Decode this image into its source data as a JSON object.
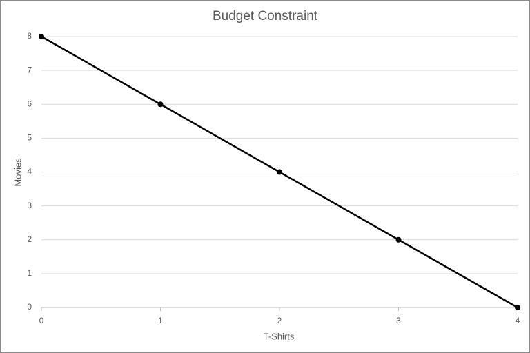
{
  "chart_data": {
    "type": "line",
    "title": "Budget Constraint",
    "x_label": "T-Shirts",
    "y_label": "Movies",
    "x": [
      0,
      1,
      2,
      3,
      4
    ],
    "values": [
      8,
      6,
      4,
      2,
      0
    ],
    "color": "#000000",
    "xlim": [
      0,
      4
    ],
    "xticks": [
      0,
      1,
      2,
      3,
      4
    ],
    "ylim": [
      0,
      8
    ],
    "yticks": [
      0,
      1,
      2,
      3,
      4,
      5,
      6,
      7,
      8
    ],
    "grid": true
  }
}
